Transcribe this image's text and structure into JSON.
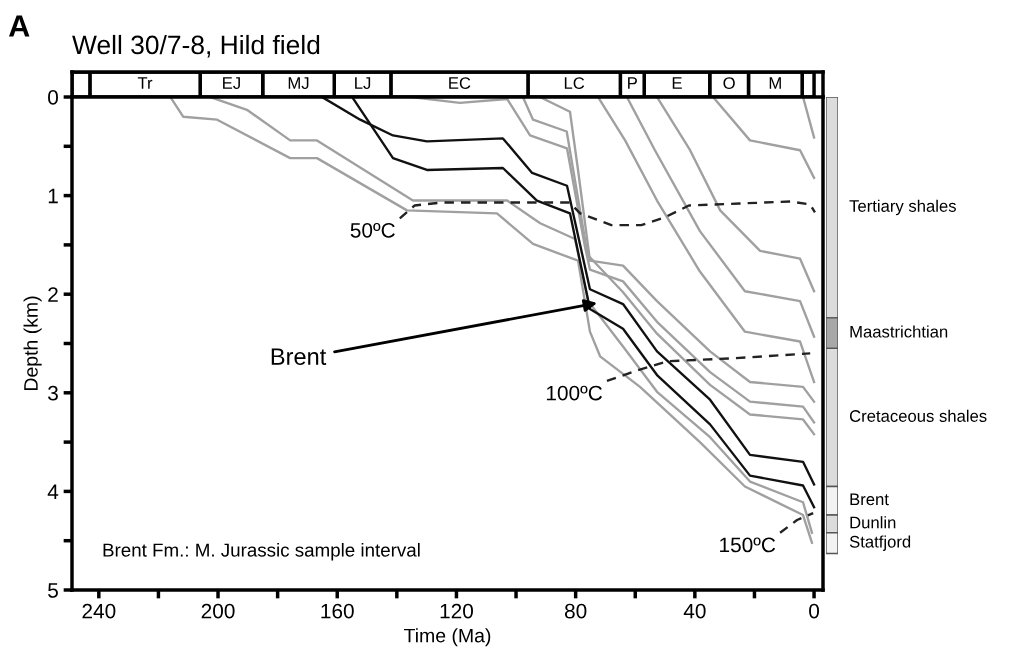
{
  "chart_data": [
    {
      "type": "line",
      "xlabel": "Time (Ma)",
      "ylabel": "Depth (km)",
      "xlim": [
        249,
        -3
      ],
      "ylim": [
        5,
        0
      ],
      "xticks": [
        240,
        {
          "value": 220,
          "label": null
        },
        200,
        {
          "value": 180,
          "label": null
        },
        160,
        {
          "value": 140,
          "label": null
        },
        120,
        {
          "value": 100,
          "label": null
        },
        80,
        {
          "value": 60,
          "label": null
        },
        40,
        {
          "value": 20,
          "label": null
        },
        0
      ],
      "yticks": [
        0,
        {
          "value": 0.5,
          "label": null
        },
        1,
        {
          "value": 1.5,
          "label": null
        },
        2,
        {
          "value": 2.5,
          "label": null
        },
        3,
        {
          "value": 3.5,
          "label": null
        },
        4,
        {
          "value": 4.5,
          "label": null
        },
        5
      ],
      "grid": false,
      "legend": false,
      "marker": "none",
      "series": [
        {
          "color": "#a0a0a0",
          "x": [
            216,
            211.7,
            200.3,
            175.8,
            166.8,
            136.6,
            106.4,
            94.3,
            79.2,
            75.2,
            71.8,
            58.4,
            38.3,
            23.2,
            3.7,
            0.7
          ],
          "values": [
            0,
            0.2,
            0.23,
            0.62,
            0.62,
            1.15,
            1.18,
            1.49,
            1.66,
            2.38,
            2.63,
            2.94,
            3.5,
            3.95,
            4.24,
            4.52
          ]
        },
        {
          "color": "#a0a0a0",
          "x": [
            202.7,
            190.3,
            175.8,
            166.8,
            134.6,
            103,
            91.9,
            80.2,
            75.8,
            64.1,
            52.7,
            34.9,
            21.5,
            3.7,
            0.7
          ],
          "values": [
            0,
            0.13,
            0.44,
            0.44,
            1.05,
            1.05,
            1.28,
            1.44,
            2.07,
            2.53,
            2.99,
            3.45,
            3.9,
            4.11,
            4.42
          ]
        },
        {
          "color": "#a0a0a0",
          "x": [
            135.6,
            118.8,
            103,
            95.3,
            82.9,
            77,
            75.2,
            64.1,
            52.7,
            34.9,
            21.5,
            3.7,
            0
          ],
          "values": [
            0,
            0.06,
            0.02,
            0.39,
            0.52,
            1.5,
            1.75,
            1.87,
            2.28,
            2.79,
            3.09,
            3.14,
            3.3
          ]
        },
        {
          "color": "#a0a0a0",
          "x": [
            97.7,
            94.3,
            83,
            76,
            64.1,
            52.7,
            34.9,
            21.5,
            3.7,
            0
          ],
          "values": [
            0,
            0.23,
            0.35,
            1.6,
            1.98,
            2.4,
            2.92,
            3.22,
            3.27,
            3.42
          ]
        },
        {
          "color": "#a0a0a0",
          "x": [
            92,
            81.9,
            79.2,
            75.2,
            64.1,
            52.7,
            34.9,
            21.5,
            3.7,
            0
          ],
          "values": [
            0,
            0.15,
            0.74,
            1.66,
            1.71,
            2.07,
            2.58,
            2.89,
            2.94,
            3.09
          ]
        },
        {
          "color": "#a0a0a0",
          "x": [
            72.5,
            63.4,
            52.7,
            38.3,
            23.2,
            4.7,
            0
          ],
          "values": [
            0,
            0.44,
            1.05,
            1.77,
            2.38,
            2.48,
            2.89
          ]
        },
        {
          "color": "#a0a0a0",
          "x": [
            62.8,
            53.4,
            38.3,
            23.2,
            4.7,
            0
          ],
          "values": [
            0,
            0.54,
            1.36,
            1.97,
            2.07,
            2.43
          ]
        },
        {
          "color": "#a0a0a0",
          "x": [
            52.7,
            41.6,
            31.5,
            18.1,
            4.7,
            0
          ],
          "values": [
            0,
            0.54,
            1.15,
            1.56,
            1.64,
            1.97
          ]
        },
        {
          "color": "#a0a0a0",
          "x": [
            33.9,
            21.5,
            4.7,
            0
          ],
          "values": [
            0,
            0.44,
            0.54,
            0.82
          ]
        },
        {
          "color": "#a0a0a0",
          "x": [
            3.7,
            0
          ],
          "values": [
            0,
            0.41
          ]
        },
        {
          "color": "#111111",
          "x": [
            165.1,
            152.3,
            141.3,
            129.9,
            104.4,
            94.6,
            82.9,
            75.2,
            64.1,
            52.7,
            34.9,
            21.5,
            3.7,
            0
          ],
          "values": [
            0,
            0.23,
            0.39,
            0.45,
            0.42,
            0.77,
            0.9,
            1.95,
            2.1,
            2.58,
            3.07,
            3.63,
            3.7,
            3.93
          ]
        },
        {
          "color": "#111111",
          "x": [
            155,
            141.3,
            129.9,
            104.4,
            93,
            81.9,
            75.2,
            64.1,
            52.7,
            34.9,
            21.5,
            3.7,
            0
          ],
          "values": [
            0,
            0.62,
            0.74,
            0.72,
            1.05,
            1.18,
            2.15,
            2.35,
            2.82,
            3.32,
            3.84,
            3.94,
            4.16
          ]
        },
        {
          "color": "#222222",
          "line_style": "dashed",
          "x": [
            139,
            134,
            125,
            82,
            78.5,
            68,
            58,
            50,
            42,
            25,
            8,
            1.3,
            -0.3
          ],
          "values": [
            1.23,
            1.1,
            1.07,
            1.07,
            1.18,
            1.3,
            1.3,
            1.22,
            1.1,
            1.08,
            1.06,
            1.09,
            1.17
          ]
        },
        {
          "color": "#222222",
          "line_style": "dashed",
          "x": [
            69.5,
            59,
            49,
            27,
            1.3
          ],
          "values": [
            2.88,
            2.77,
            2.68,
            2.65,
            2.6
          ]
        },
        {
          "color": "#222222",
          "line_style": "dashed",
          "x": [
            11.4,
            5.7,
            0.3
          ],
          "values": [
            4.42,
            4.29,
            4.22
          ]
        }
      ],
      "annotations": [
        "A",
        "Brent Fm.: M. Jurassic sample interval",
        {
          "text": "50ºC",
          "x": 139,
          "y": 1.23
        },
        {
          "text": "100ºC",
          "x": 69.5,
          "y": 2.88
        },
        {
          "text": "150ºC",
          "x": 11.4,
          "y": 4.42
        },
        {
          "text": "Brent",
          "x": 72.8,
          "y": 2.09
        }
      ]
    },
    {
      "type": "bar",
      "title": "Well 30/7-8, Hild field",
      "orientation": "horizontal",
      "stacked": true,
      "categories": [
        null
      ],
      "xlim": [
        249,
        -3
      ],
      "tick_labels": false,
      "legend": false,
      "series": [
        {
          "color": "#ffffff",
          "values": [
            4
          ]
        },
        {
          "name": "M",
          "color": "#ffffff",
          "values": [
            18
          ]
        },
        {
          "name": "O",
          "color": "#ffffff",
          "values": [
            13
          ]
        },
        {
          "name": "E",
          "color": "#ffffff",
          "values": [
            22
          ]
        },
        {
          "name": "P",
          "color": "#ffffff",
          "values": [
            8
          ]
        },
        {
          "name": "LC",
          "color": "#ffffff",
          "values": [
            31
          ]
        },
        {
          "name": "EC",
          "color": "#ffffff",
          "values": [
            46
          ]
        },
        {
          "name": "LJ",
          "color": "#ffffff",
          "values": [
            19
          ]
        },
        {
          "name": "MJ",
          "color": "#ffffff",
          "values": [
            24
          ]
        },
        {
          "name": "EJ",
          "color": "#ffffff",
          "values": [
            21
          ]
        },
        {
          "name": "Tr",
          "color": "#ffffff",
          "values": [
            37
          ]
        },
        {
          "color": "#ffffff",
          "values": [
            6
          ]
        }
      ]
    },
    {
      "type": "bar",
      "stacked": true,
      "categories": [
        null
      ],
      "ylim": [
        5,
        0
      ],
      "tick_labels": false,
      "legend": false,
      "series": [
        {
          "name": "Tertiary shales",
          "color": "#dcdcdc",
          "values": [
            2.24
          ]
        },
        {
          "name": "Maastrichtian",
          "color": "#a8a8a8",
          "values": [
            0.31
          ]
        },
        {
          "name": "Cretaceous shales",
          "color": "#dcdcdc",
          "values": [
            1.4
          ]
        },
        {
          "name": "Brent",
          "color": "#f2f2f2",
          "values": [
            0.29
          ]
        },
        {
          "name": "Dunlin",
          "color": "#dcdcdc",
          "values": [
            0.18
          ]
        },
        {
          "name": "Statfjord",
          "color": "#f2f2f2",
          "values": [
            0.21
          ]
        }
      ]
    }
  ]
}
